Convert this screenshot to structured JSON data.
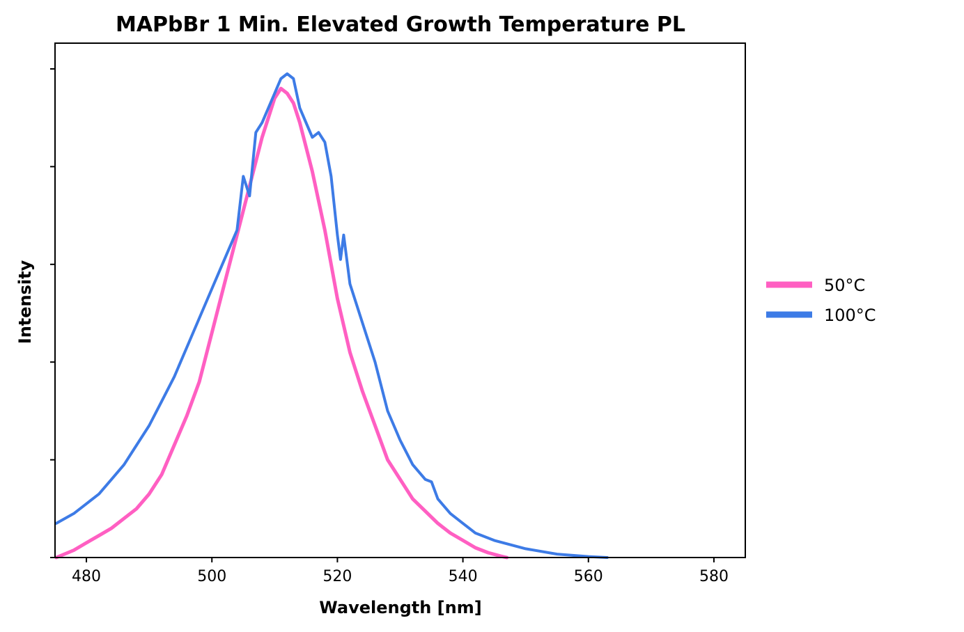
{
  "chart_data": {
    "type": "line",
    "title": "MAPbBr 1 Min. Elevated Growth Temperature PL",
    "xlabel": "Wavelength [nm]",
    "ylabel": "Intensity",
    "xlim": [
      475,
      585
    ],
    "ylim": [
      0,
      1.0
    ],
    "x_ticks": [
      480,
      500,
      520,
      540,
      560,
      580
    ],
    "x_tick_labels": [
      "480",
      "500",
      "520",
      "540",
      "560",
      "580"
    ],
    "y_ticks_unlabeled": [
      0,
      0.2,
      0.4,
      0.6,
      0.8,
      1.0
    ],
    "grid": false,
    "legend_position": "right",
    "series": [
      {
        "name": "50°C",
        "color": "#ff5fc2",
        "x": [
          475.2,
          478,
          480,
          482,
          484,
          486,
          488,
          490,
          492,
          494,
          496,
          498,
          500,
          502,
          504,
          506,
          508,
          510,
          511,
          512,
          513,
          514,
          516,
          518,
          520,
          522,
          524,
          526,
          528,
          530,
          532,
          534,
          536,
          538,
          540,
          542,
          544,
          546,
          547
        ],
        "y": [
          0.0,
          0.015,
          0.03,
          0.045,
          0.06,
          0.08,
          0.1,
          0.13,
          0.17,
          0.23,
          0.29,
          0.36,
          0.46,
          0.56,
          0.66,
          0.76,
          0.86,
          0.94,
          0.96,
          0.95,
          0.93,
          0.89,
          0.79,
          0.67,
          0.53,
          0.42,
          0.34,
          0.27,
          0.2,
          0.16,
          0.12,
          0.095,
          0.07,
          0.05,
          0.035,
          0.02,
          0.01,
          0.003,
          0.0
        ]
      },
      {
        "name": "100°C",
        "color": "#3d7be6",
        "x": [
          475.2,
          478,
          480,
          482,
          484,
          486,
          488,
          490,
          492,
          494,
          496,
          498,
          500,
          502,
          504,
          505,
          506,
          507,
          508,
          510,
          511,
          512,
          513,
          514,
          516,
          517,
          518,
          519,
          520,
          520.5,
          521,
          522,
          524,
          526,
          528,
          530,
          532,
          534,
          535,
          536,
          538,
          540,
          542,
          545,
          550,
          555,
          560,
          563
        ],
        "y": [
          0.07,
          0.09,
          0.11,
          0.13,
          0.16,
          0.19,
          0.23,
          0.27,
          0.32,
          0.37,
          0.43,
          0.49,
          0.55,
          0.61,
          0.67,
          0.78,
          0.74,
          0.87,
          0.89,
          0.95,
          0.98,
          0.99,
          0.98,
          0.92,
          0.86,
          0.87,
          0.85,
          0.78,
          0.66,
          0.61,
          0.66,
          0.56,
          0.48,
          0.4,
          0.3,
          0.24,
          0.19,
          0.16,
          0.155,
          0.12,
          0.09,
          0.07,
          0.05,
          0.035,
          0.018,
          0.007,
          0.002,
          0.0
        ]
      }
    ]
  }
}
